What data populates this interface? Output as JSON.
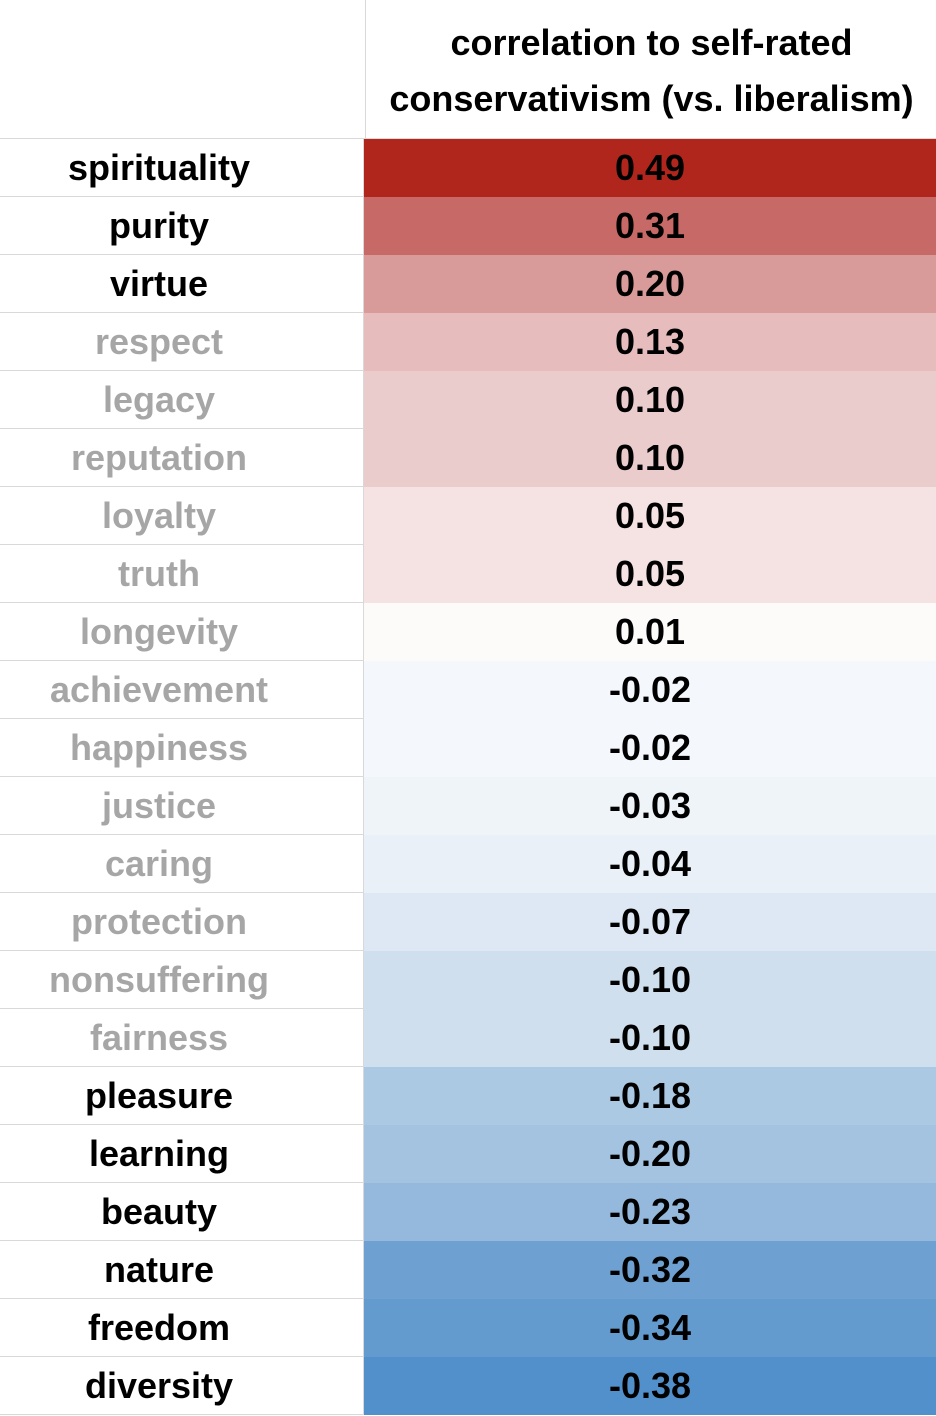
{
  "chart_data": {
    "type": "table",
    "column_header": "correlation to self-rated conservativism (vs. liberalism)",
    "header_lines": [
      "correlation to self-rated",
      "conservativism (vs. liberalism)"
    ],
    "rows": [
      {
        "label": "spirituality",
        "value": "0.49",
        "v": 0.49,
        "strong": true,
        "color": "#b0261d"
      },
      {
        "label": "purity",
        "value": "0.31",
        "v": 0.31,
        "strong": true,
        "color": "#c76967"
      },
      {
        "label": "virtue",
        "value": "0.20",
        "v": 0.2,
        "strong": true,
        "color": "#d99b9a"
      },
      {
        "label": "respect",
        "value": "0.13",
        "v": 0.13,
        "strong": false,
        "color": "#e6bcbc"
      },
      {
        "label": "legacy",
        "value": "0.10",
        "v": 0.1,
        "strong": false,
        "color": "#ebcccc"
      },
      {
        "label": "reputation",
        "value": "0.10",
        "v": 0.1,
        "strong": false,
        "color": "#ebcccc"
      },
      {
        "label": "loyalty",
        "value": "0.05",
        "v": 0.05,
        "strong": false,
        "color": "#f5e3e3"
      },
      {
        "label": "truth",
        "value": "0.05",
        "v": 0.05,
        "strong": false,
        "color": "#f5e3e3"
      },
      {
        "label": "longevity",
        "value": "0.01",
        "v": 0.01,
        "strong": false,
        "color": "#fdfafa"
      },
      {
        "label": "achievement",
        "value": "-0.02",
        "v": -0.02,
        "strong": false,
        "color": "#f4f7fb"
      },
      {
        "label": "happiness",
        "value": "-0.02",
        "v": -0.02,
        "strong": false,
        "color": "#f4f7fb"
      },
      {
        "label": "justice",
        "value": "-0.03",
        "v": -0.03,
        "strong": false,
        "color": "#eff4f9"
      },
      {
        "label": "caring",
        "value": "-0.04",
        "v": -0.04,
        "strong": false,
        "color": "#e9f0f8"
      },
      {
        "label": "protection",
        "value": "-0.07",
        "v": -0.07,
        "strong": false,
        "color": "#dde8f4"
      },
      {
        "label": "nonsuffering",
        "value": "-0.10",
        "v": -0.1,
        "strong": false,
        "color": "#cfdfee"
      },
      {
        "label": "fairness",
        "value": "-0.10",
        "v": -0.1,
        "strong": false,
        "color": "#cfdfee"
      },
      {
        "label": "pleasure",
        "value": "-0.18",
        "v": -0.18,
        "strong": true,
        "color": "#acc9e4"
      },
      {
        "label": "learning",
        "value": "-0.20",
        "v": -0.2,
        "strong": true,
        "color": "#a3c3e1"
      },
      {
        "label": "beauty",
        "value": "-0.23",
        "v": -0.23,
        "strong": true,
        "color": "#94b9dd"
      },
      {
        "label": "nature",
        "value": "-0.32",
        "v": -0.32,
        "strong": true,
        "color": "#6ea1d1"
      },
      {
        "label": "freedom",
        "value": "-0.34",
        "v": -0.34,
        "strong": true,
        "color": "#649bcf"
      },
      {
        "label": "diversity",
        "value": "-0.38",
        "v": -0.38,
        "strong": true,
        "color": "#5190ca"
      }
    ]
  }
}
